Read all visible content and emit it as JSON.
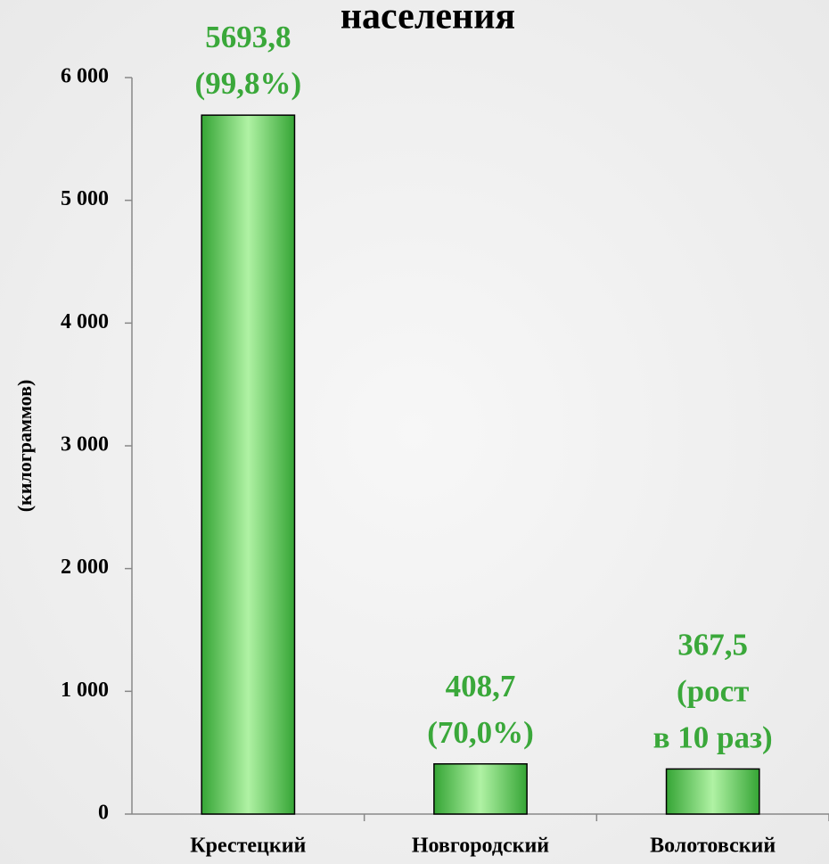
{
  "chart_data": {
    "type": "bar",
    "title": "населения",
    "y_label": "(килограммов)",
    "categories": [
      "Крестецкий",
      "Новгородский",
      "Волотовский"
    ],
    "values": [
      5693.8,
      408.7,
      367.5
    ],
    "value_labels": [
      [
        "5693,8",
        "(99,8%)"
      ],
      [
        "408,7",
        "(70,0%)"
      ],
      [
        "367,5",
        "(рост",
        "в 10 раз)"
      ]
    ],
    "color": "#3aa83a",
    "ylim": [
      0,
      6000
    ],
    "yticks": [
      0,
      {
        "value": 1000,
        "label": "1 000"
      },
      {
        "value": 2000,
        "label": "2 000"
      },
      {
        "value": 3000,
        "label": "3 000"
      },
      {
        "value": 4000,
        "label": "4 000"
      },
      {
        "value": 5000,
        "label": "5 000"
      },
      {
        "value": 6000,
        "label": "6 000"
      }
    ],
    "grid": false
  }
}
